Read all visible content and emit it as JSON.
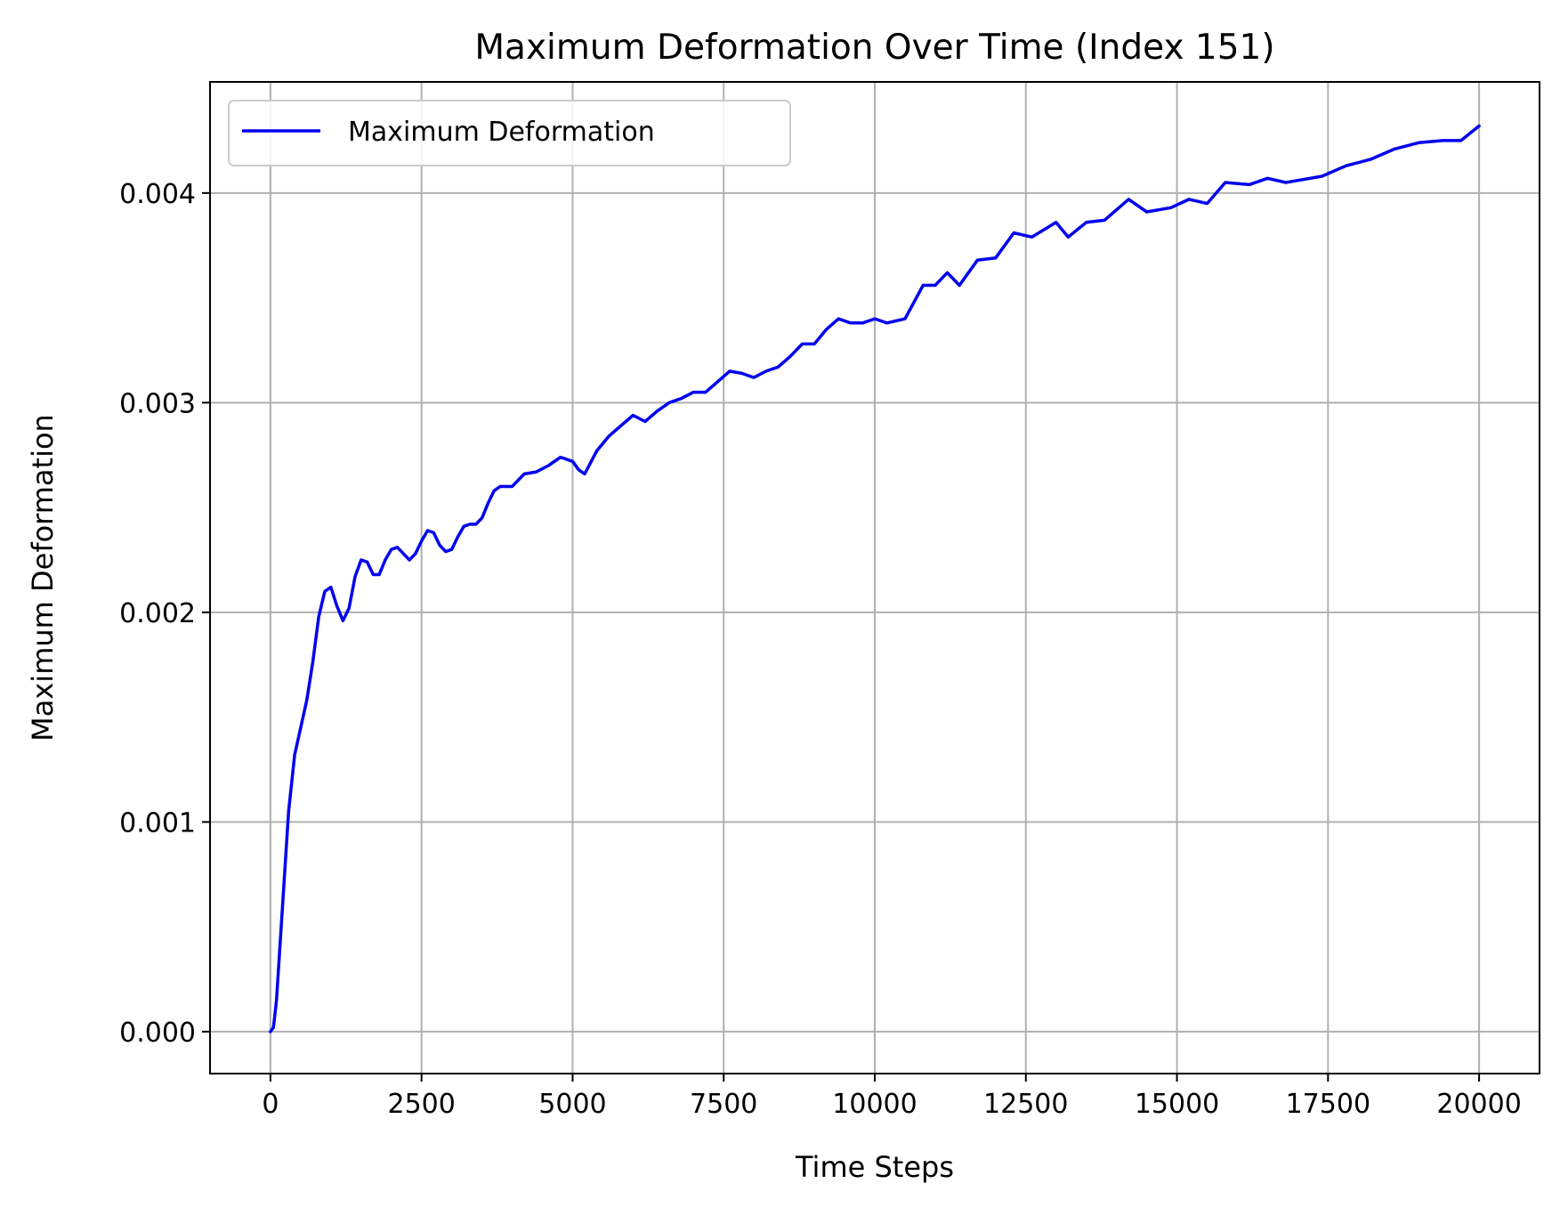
{
  "chart_data": {
    "type": "line",
    "title": "Maximum Deformation Over Time (Index 151)",
    "xlabel": "Time Steps",
    "ylabel": "Maximum Deformation",
    "xlim": [
      -1000,
      21000
    ],
    "ylim": [
      -0.0002,
      0.00453
    ],
    "xticks": [
      0,
      2500,
      5000,
      7500,
      10000,
      12500,
      15000,
      17500,
      20000
    ],
    "xtick_labels": [
      "0",
      "2500",
      "5000",
      "7500",
      "10000",
      "12500",
      "15000",
      "17500",
      "20000"
    ],
    "yticks": [
      0,
      0.001,
      0.002,
      0.003,
      0.004
    ],
    "ytick_labels": [
      "0.000",
      "0.001",
      "0.002",
      "0.003",
      "0.004"
    ],
    "grid": true,
    "legend": {
      "position": "top-left",
      "entries": [
        "Maximum Deformation"
      ]
    },
    "colors": {
      "series": "#0000ee",
      "grid": "#b0b0b0",
      "frame": "#000000"
    },
    "series": [
      {
        "name": "Maximum Deformation",
        "x": [
          0,
          50,
          100,
          200,
          300,
          400,
          500,
          600,
          700,
          800,
          900,
          1000,
          1100,
          1200,
          1300,
          1400,
          1500,
          1600,
          1700,
          1800,
          1900,
          2000,
          2100,
          2200,
          2300,
          2400,
          2500,
          2600,
          2700,
          2800,
          2900,
          3000,
          3100,
          3200,
          3300,
          3400,
          3500,
          3600,
          3700,
          3800,
          3900,
          4000,
          4200,
          4400,
          4600,
          4800,
          5000,
          5100,
          5200,
          5400,
          5600,
          5800,
          6000,
          6200,
          6400,
          6600,
          6800,
          7000,
          7200,
          7400,
          7600,
          7800,
          8000,
          8200,
          8400,
          8600,
          8800,
          9000,
          9200,
          9400,
          9600,
          9800,
          10000,
          10200,
          10500,
          10800,
          11000,
          11200,
          11400,
          11700,
          12000,
          12300,
          12600,
          13000,
          13200,
          13500,
          13800,
          14200,
          14500,
          14900,
          15200,
          15500,
          15800,
          16200,
          16500,
          16800,
          17000,
          17400,
          17800,
          18200,
          18600,
          19000,
          19400,
          19700,
          20000
        ],
        "y": [
          0,
          2e-05,
          0.00015,
          0.0006,
          0.00105,
          0.00132,
          0.00145,
          0.00158,
          0.00176,
          0.00198,
          0.0021,
          0.00212,
          0.00203,
          0.00196,
          0.00202,
          0.00217,
          0.00225,
          0.00224,
          0.00218,
          0.00218,
          0.00225,
          0.0023,
          0.00231,
          0.00228,
          0.00225,
          0.00228,
          0.00234,
          0.00239,
          0.00238,
          0.00232,
          0.00229,
          0.0023,
          0.00236,
          0.00241,
          0.00242,
          0.00242,
          0.00245,
          0.00252,
          0.00258,
          0.0026,
          0.0026,
          0.0026,
          0.00266,
          0.00267,
          0.0027,
          0.00274,
          0.00272,
          0.00268,
          0.00266,
          0.00277,
          0.00284,
          0.00289,
          0.00294,
          0.00291,
          0.00296,
          0.003,
          0.00302,
          0.00305,
          0.00305,
          0.0031,
          0.00315,
          0.00314,
          0.00312,
          0.00315,
          0.00317,
          0.00322,
          0.00328,
          0.00328,
          0.00335,
          0.0034,
          0.00338,
          0.00338,
          0.0034,
          0.00338,
          0.0034,
          0.00356,
          0.00356,
          0.00362,
          0.00356,
          0.00368,
          0.00369,
          0.00381,
          0.00379,
          0.00386,
          0.00379,
          0.00386,
          0.00387,
          0.00397,
          0.00391,
          0.00393,
          0.00397,
          0.00395,
          0.00405,
          0.00404,
          0.00407,
          0.00405,
          0.00406,
          0.00408,
          0.00413,
          0.00416,
          0.00421,
          0.00424,
          0.00425,
          0.00425,
          0.00432
        ]
      }
    ]
  }
}
